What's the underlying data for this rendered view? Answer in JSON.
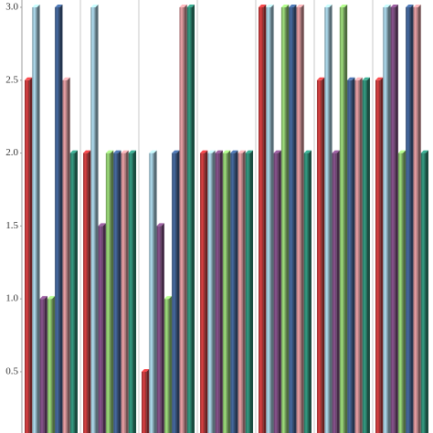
{
  "chart_data": {
    "type": "bar",
    "categories": [
      null,
      null,
      null,
      null,
      null,
      null,
      null
    ],
    "series": [
      {
        "color": "#c0393b",
        "values": [
          2.5,
          2.0,
          0.5,
          2.0,
          3.0,
          2.5,
          2.5
        ]
      },
      {
        "color": "#9cc3d3",
        "values": [
          3.0,
          3.0,
          2.0,
          2.0,
          3.0,
          3.0,
          3.0
        ]
      },
      {
        "color": "#7a4b7e",
        "values": [
          1.0,
          1.5,
          1.5,
          2.0,
          2.0,
          2.0,
          3.0
        ]
      },
      {
        "color": "#8cc46e",
        "values": [
          1.0,
          2.0,
          1.0,
          2.0,
          3.0,
          3.0,
          2.0
        ]
      },
      {
        "color": "#3f5f8f",
        "values": [
          3.0,
          2.0,
          2.0,
          2.0,
          3.0,
          2.5,
          3.0
        ]
      },
      {
        "color": "#d08f93",
        "values": [
          2.5,
          2.0,
          3.0,
          2.0,
          3.0,
          2.5,
          3.0
        ]
      },
      {
        "color": "#2f8a74",
        "values": [
          2.0,
          2.0,
          3.0,
          2.0,
          2.0,
          2.5,
          2.0
        ]
      }
    ],
    "ylim": [
      0.08,
      3.05
    ],
    "yticks": [
      0.5,
      {
        "value": 1,
        "label": "1.0"
      },
      1.5,
      {
        "value": 2,
        "label": "2.0"
      },
      2.5,
      {
        "value": 3,
        "label": "3.0"
      }
    ]
  }
}
